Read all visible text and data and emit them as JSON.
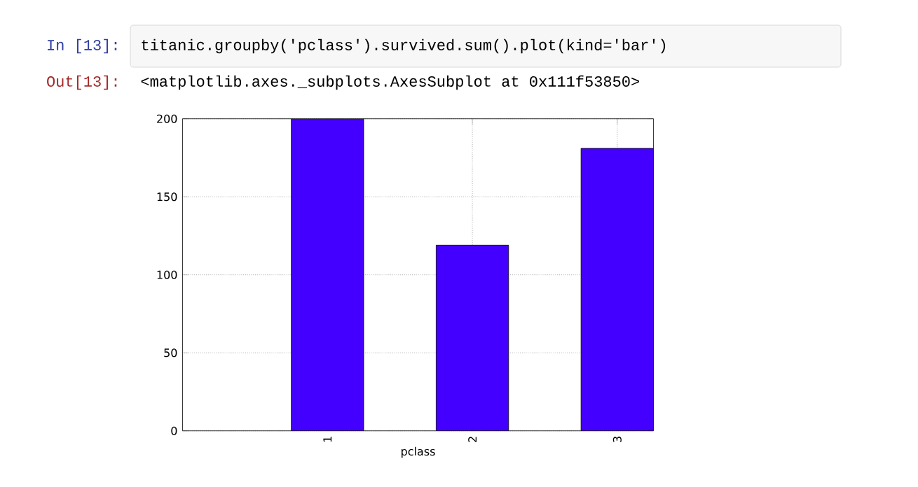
{
  "chart_data": {
    "type": "bar",
    "xlabel": "pclass",
    "categories": [
      "1",
      "2",
      "3"
    ],
    "values": [
      200,
      119,
      181
    ],
    "color": "#4400ff",
    "ylim": [
      0,
      200
    ],
    "yticks": [
      0,
      50,
      100,
      150,
      200
    ],
    "grid": true,
    "annotations": [
      "In [13]:",
      "titanic.groupby('pclass').survived.sum().plot(kind='bar')",
      "Out[13]:",
      "<matplotlib.axes._subplots.AxesSubplot at 0x111f53850>"
    ]
  }
}
